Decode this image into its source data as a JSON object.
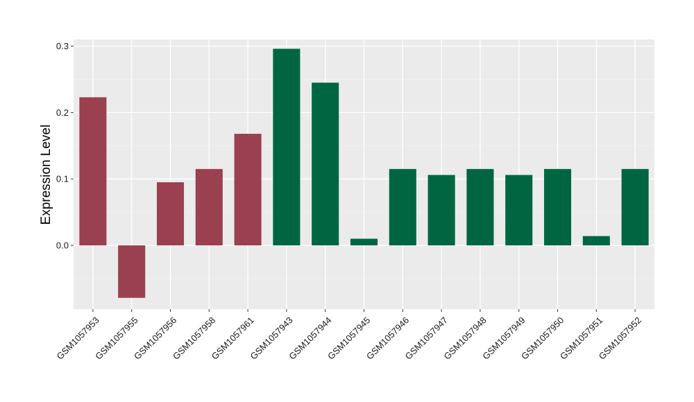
{
  "chart_data": {
    "type": "bar",
    "xlabel": "",
    "ylabel": "Expression Level",
    "ylim": [
      -0.096,
      0.31
    ],
    "yticks": [
      0.0,
      0.1,
      0.2,
      0.3
    ],
    "ytick_labels": [
      "0.0",
      "0.1",
      "0.2",
      "0.3"
    ],
    "grid": true,
    "legend": "none",
    "categories": [
      "GSM1057953",
      "GSM1057955",
      "GSM1057956",
      "GSM1057958",
      "GSM1057961",
      "GSM1057943",
      "GSM1057944",
      "GSM1057945",
      "GSM1057946",
      "GSM1057947",
      "GSM1057948",
      "GSM1057949",
      "GSM1057950",
      "GSM1057951",
      "GSM1057952"
    ],
    "values": [
      0.223,
      -0.079,
      0.095,
      0.115,
      0.168,
      0.296,
      0.245,
      0.01,
      0.115,
      0.106,
      0.115,
      0.106,
      0.115,
      0.014,
      0.115
    ],
    "group_colors": [
      "#9a404e",
      "#9a404e",
      "#9a404e",
      "#9a404e",
      "#9a404e",
      "#006641",
      "#006641",
      "#006641",
      "#006641",
      "#006641",
      "#006641",
      "#006641",
      "#006641",
      "#006641",
      "#006641"
    ]
  },
  "colors": {
    "panel_background": "#ebebeb",
    "grid_major": "#ffffff",
    "grid_minor": "#f2f2f2",
    "tick": "#333333"
  }
}
